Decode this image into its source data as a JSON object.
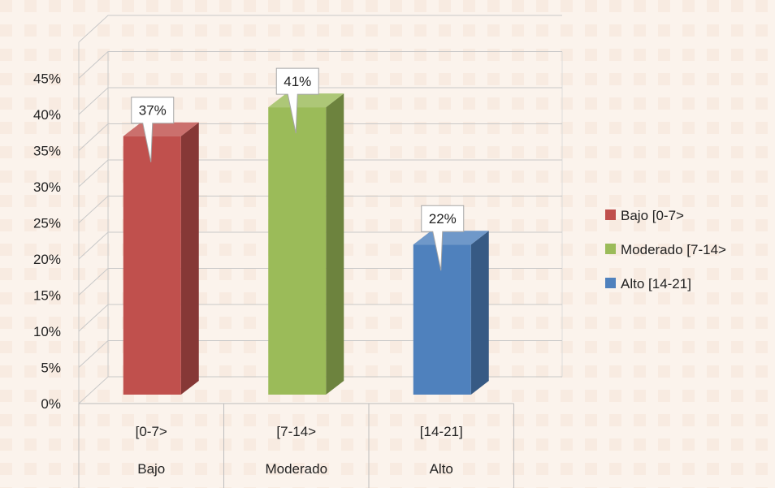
{
  "chart_data": {
    "type": "bar",
    "title": "",
    "categories": [
      "[0-7>",
      "[7-14>",
      "[14-21]"
    ],
    "category_sublabels": [
      "Bajo",
      "Moderado",
      "Alto"
    ],
    "values": [
      37,
      41,
      22
    ],
    "data_labels": [
      "37%",
      "41%",
      "22%"
    ],
    "colors": [
      "#c0504d",
      "#9bbb59",
      "#4f81bd"
    ],
    "yticks": [
      "0%",
      "5%",
      "10%",
      "15%",
      "20%",
      "25%",
      "30%",
      "35%",
      "40%",
      "45%"
    ],
    "ylim": [
      0,
      45
    ],
    "grid": true,
    "legend": {
      "position": "right",
      "entries": [
        "Bajo  [0-7>",
        "Moderado  [7-14>",
        "Alto  [14-21]"
      ]
    }
  }
}
